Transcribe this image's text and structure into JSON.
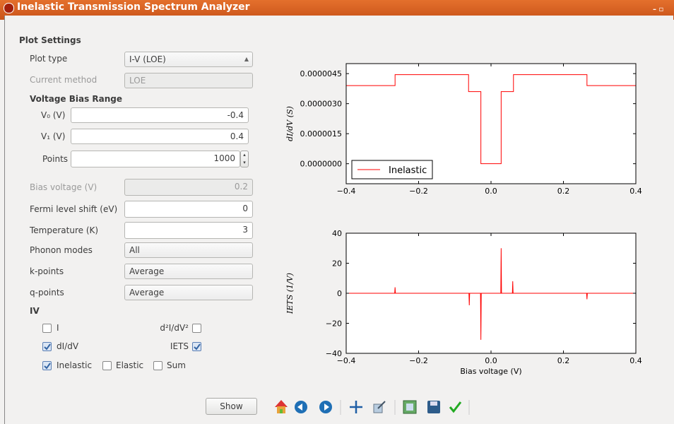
{
  "window": {
    "title": "Inelastic Transmission Spectrum Analyzer"
  },
  "settings": {
    "heading": "Plot Settings",
    "plot_type": {
      "label": "Plot type",
      "value": "I-V (LOE)"
    },
    "current_method": {
      "label": "Current method",
      "value": "LOE",
      "disabled": true
    },
    "bias_range": {
      "heading": "Voltage Bias Range",
      "v0": {
        "label": "V₀ (V)",
        "value": -0.4
      },
      "v1": {
        "label": "V₁ (V)",
        "value": 0.4
      },
      "points": {
        "label": "Points",
        "value": 1000
      }
    },
    "bias_voltage": {
      "label": "Bias voltage (V)",
      "value": 0.2,
      "disabled": true
    },
    "fermi_shift": {
      "label": "Fermi level shift (eV)",
      "value": 0
    },
    "temperature": {
      "label": "Temperature (K)",
      "value": 3
    },
    "phonon_modes": {
      "label": "Phonon modes",
      "value": "All"
    },
    "k_points": {
      "label": "k-points",
      "value": "Average"
    },
    "q_points": {
      "label": "q-points",
      "value": "Average"
    },
    "iv": {
      "heading": "IV",
      "options": [
        {
          "label": "I",
          "checked": false
        },
        {
          "label": "d²I/dV²",
          "checked": false
        },
        {
          "label": "dI/dV",
          "checked": true
        },
        {
          "label": "IETS",
          "checked": true
        },
        {
          "label": "Inelastic",
          "checked": true
        },
        {
          "label": "Elastic",
          "checked": false
        },
        {
          "label": "Sum",
          "checked": false
        }
      ]
    }
  },
  "toolbar": {
    "show_button": "Show"
  },
  "chart_data": [
    {
      "type": "line",
      "y_label": "dI/dV (S)",
      "xlim": [
        -0.4,
        0.4
      ],
      "xticks": [
        {
          "value": -0.4,
          "label": "−0.4"
        },
        {
          "value": -0.2,
          "label": "−0.2"
        },
        {
          "value": 0,
          "label": "0.0"
        },
        0.2,
        0.4
      ],
      "ylim": [
        -1e-06,
        5e-06
      ],
      "yticks": [
        {
          "value": 0,
          "label": "0.0000000"
        },
        {
          "value": 1.5e-06,
          "label": "0.0000015"
        },
        {
          "value": 3e-06,
          "label": "0.0000030"
        },
        {
          "value": 4.5e-06,
          "label": "0.0000045"
        }
      ],
      "legend": "lower left",
      "series": [
        {
          "name": "Inelastic",
          "color": "#ff0000",
          "x": [
            -0.4,
            -0.265,
            -0.265,
            -0.062,
            -0.062,
            -0.028,
            -0.028,
            0.028,
            0.028,
            0.062,
            0.062,
            0.265,
            0.265,
            0.4
          ],
          "values": [
            3.9e-06,
            3.9e-06,
            4.45e-06,
            4.45e-06,
            3.6e-06,
            3.6e-06,
            0,
            0,
            3.6e-06,
            3.6e-06,
            4.45e-06,
            4.45e-06,
            3.9e-06,
            3.9e-06
          ]
        }
      ]
    },
    {
      "type": "line",
      "y_label": "IETS (1/V)",
      "x_label": "Bias voltage (V)",
      "xlim": [
        -0.4,
        0.4
      ],
      "xticks": [
        {
          "value": -0.4,
          "label": "−0.4"
        },
        {
          "value": -0.2,
          "label": "−0.2"
        },
        {
          "value": 0,
          "label": "0.0"
        },
        0.2,
        0.4
      ],
      "ylim": [
        -40,
        40
      ],
      "yticks": [
        {
          "value": -40,
          "label": "−40"
        },
        {
          "value": -20,
          "label": "−20"
        },
        0,
        20,
        40
      ],
      "series": [
        {
          "color": "#ff0000",
          "x": [
            -0.4,
            -0.266,
            -0.265,
            -0.264,
            -0.061,
            -0.06,
            -0.059,
            -0.029,
            -0.028,
            -0.027,
            0.027,
            0.028,
            0.029,
            0.059,
            0.06,
            0.061,
            0.264,
            0.265,
            0.266,
            0.4
          ],
          "values": [
            0,
            0,
            4,
            0,
            0,
            -8,
            0,
            0,
            -31,
            0,
            0,
            30,
            0,
            0,
            8,
            0,
            0,
            -4,
            0,
            0
          ]
        }
      ]
    }
  ]
}
